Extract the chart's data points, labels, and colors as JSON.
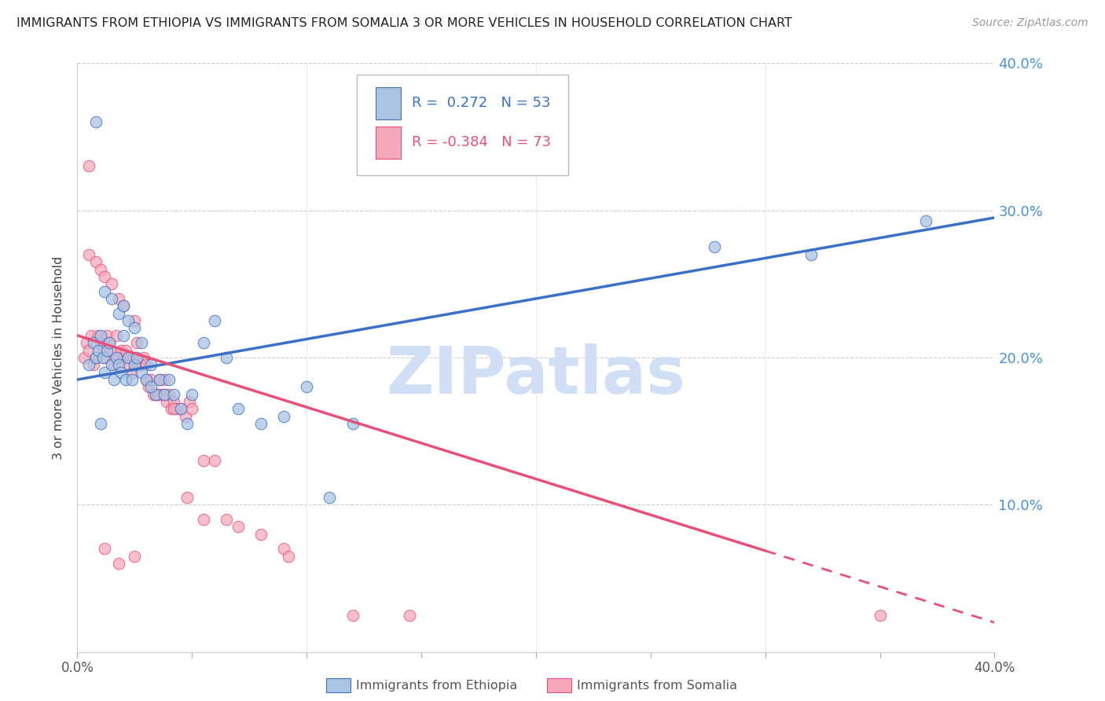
{
  "title": "IMMIGRANTS FROM ETHIOPIA VS IMMIGRANTS FROM SOMALIA 3 OR MORE VEHICLES IN HOUSEHOLD CORRELATION CHART",
  "source": "Source: ZipAtlas.com",
  "ylabel": "3 or more Vehicles in Household",
  "xlim": [
    0.0,
    0.4
  ],
  "ylim": [
    0.0,
    0.4
  ],
  "legend_ethiopia": "Immigrants from Ethiopia",
  "legend_somalia": "Immigrants from Somalia",
  "R_ethiopia": 0.272,
  "N_ethiopia": 53,
  "R_somalia": -0.384,
  "N_somalia": 73,
  "color_ethiopia": "#aac4e2",
  "color_somalia": "#f5a8bc",
  "line_color_ethiopia": "#3a70c8",
  "line_color_somalia": "#e8507a",
  "watermark": "ZIPatlas",
  "watermark_color": "#d0dff5",
  "eth_line_x0": 0.0,
  "eth_line_y0": 0.185,
  "eth_line_x1": 0.4,
  "eth_line_y1": 0.295,
  "som_line_x0": 0.0,
  "som_line_y0": 0.215,
  "som_line_x1": 0.4,
  "som_line_y1": 0.02,
  "som_line_solid_end": 0.3,
  "ethiopia_x": [
    0.005,
    0.007,
    0.008,
    0.009,
    0.01,
    0.011,
    0.012,
    0.013,
    0.014,
    0.015,
    0.016,
    0.017,
    0.018,
    0.019,
    0.02,
    0.021,
    0.022,
    0.024,
    0.025,
    0.026,
    0.028,
    0.03,
    0.032,
    0.034,
    0.036,
    0.038,
    0.04,
    0.042,
    0.045,
    0.048,
    0.05,
    0.055,
    0.06,
    0.065,
    0.07,
    0.08,
    0.09,
    0.1,
    0.11,
    0.12,
    0.012,
    0.015,
    0.018,
    0.02,
    0.022,
    0.025,
    0.028,
    0.032,
    0.278,
    0.32,
    0.008,
    0.01,
    0.37
  ],
  "ethiopia_y": [
    0.195,
    0.21,
    0.2,
    0.205,
    0.215,
    0.2,
    0.19,
    0.205,
    0.21,
    0.195,
    0.185,
    0.2,
    0.195,
    0.19,
    0.215,
    0.185,
    0.2,
    0.185,
    0.195,
    0.2,
    0.19,
    0.185,
    0.195,
    0.175,
    0.185,
    0.175,
    0.185,
    0.175,
    0.165,
    0.155,
    0.175,
    0.21,
    0.225,
    0.2,
    0.165,
    0.155,
    0.16,
    0.18,
    0.105,
    0.155,
    0.245,
    0.24,
    0.23,
    0.235,
    0.225,
    0.22,
    0.21,
    0.18,
    0.275,
    0.27,
    0.36,
    0.155,
    0.293
  ],
  "somalia_x": [
    0.003,
    0.004,
    0.005,
    0.006,
    0.007,
    0.008,
    0.009,
    0.01,
    0.011,
    0.012,
    0.013,
    0.014,
    0.015,
    0.016,
    0.017,
    0.018,
    0.019,
    0.02,
    0.021,
    0.022,
    0.023,
    0.024,
    0.025,
    0.026,
    0.027,
    0.028,
    0.029,
    0.03,
    0.031,
    0.032,
    0.033,
    0.034,
    0.035,
    0.036,
    0.037,
    0.038,
    0.039,
    0.04,
    0.041,
    0.042,
    0.043,
    0.045,
    0.047,
    0.049,
    0.05,
    0.055,
    0.06,
    0.065,
    0.07,
    0.08,
    0.005,
    0.008,
    0.01,
    0.012,
    0.015,
    0.018,
    0.02,
    0.025,
    0.03,
    0.035,
    0.038,
    0.042,
    0.048,
    0.055,
    0.09,
    0.12,
    0.145,
    0.092,
    0.005,
    0.012,
    0.018,
    0.025,
    0.35
  ],
  "somalia_y": [
    0.2,
    0.21,
    0.205,
    0.215,
    0.195,
    0.2,
    0.215,
    0.21,
    0.205,
    0.2,
    0.215,
    0.21,
    0.205,
    0.195,
    0.215,
    0.2,
    0.205,
    0.2,
    0.205,
    0.195,
    0.2,
    0.19,
    0.2,
    0.21,
    0.195,
    0.195,
    0.2,
    0.195,
    0.18,
    0.185,
    0.175,
    0.175,
    0.175,
    0.185,
    0.175,
    0.185,
    0.17,
    0.175,
    0.165,
    0.17,
    0.165,
    0.165,
    0.16,
    0.17,
    0.165,
    0.13,
    0.13,
    0.09,
    0.085,
    0.08,
    0.27,
    0.265,
    0.26,
    0.255,
    0.25,
    0.24,
    0.235,
    0.225,
    0.185,
    0.175,
    0.175,
    0.165,
    0.105,
    0.09,
    0.07,
    0.025,
    0.025,
    0.065,
    0.33,
    0.07,
    0.06,
    0.065,
    0.025
  ]
}
